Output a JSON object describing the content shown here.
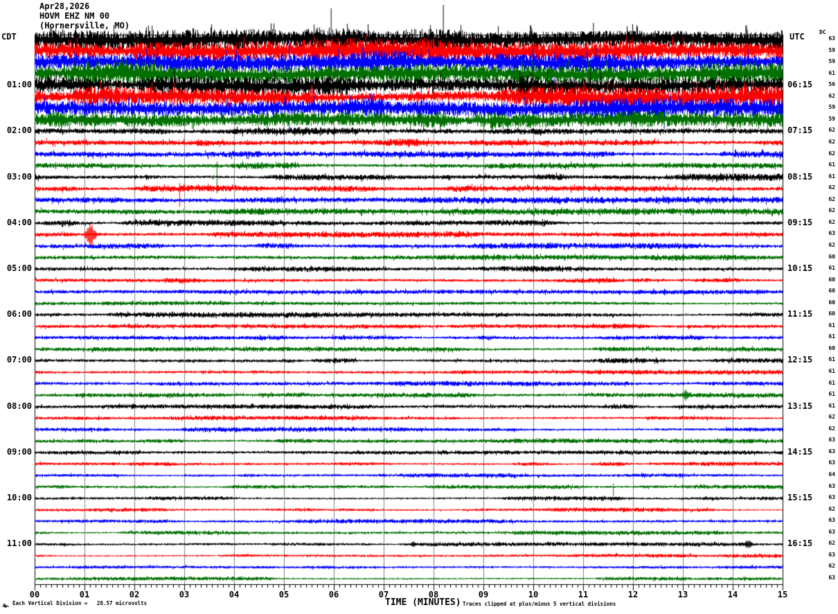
{
  "header": {
    "date": "Apr28,2026",
    "station": "HOVM EHZ NM 00",
    "location": "(Hornersville, MO)"
  },
  "axes": {
    "left_timezone_label": "CDT",
    "right_timezone_label": "UTC",
    "dc_header": "DC",
    "x_title": "TIME (MINUTES)",
    "x_ticks": [
      "00",
      "01",
      "02",
      "03",
      "04",
      "05",
      "06",
      "07",
      "08",
      "09",
      "10",
      "11",
      "12",
      "13",
      "14",
      "15"
    ],
    "footer_left": "Each Vertical Division =   28.57 microvolts",
    "footer_right": "Traces clipped at plus/minus 5 vertical divisions"
  },
  "chart_data": {
    "type": "line",
    "subtype": "helicorder-seismogram",
    "minutes_per_line": 15,
    "x_range": [
      0,
      15
    ],
    "xlabel": "TIME (MINUTES)",
    "grid": true,
    "grid_color": "#808080",
    "trace_color_cycle": [
      "#000000",
      "#ff0000",
      "#0000ff",
      "#007000"
    ],
    "vertical_division_microvolts": 28.57,
    "clip_divisions": 5,
    "rows": [
      {
        "dc": 63,
        "color": "black",
        "amp": 11,
        "activity": "high"
      },
      {
        "dc": 59,
        "color": "red",
        "amp": 11,
        "activity": "high"
      },
      {
        "dc": 59,
        "color": "blue",
        "amp": 11,
        "activity": "high"
      },
      {
        "dc": 61,
        "color": "green",
        "amp": 11,
        "activity": "high"
      },
      {
        "cdt": "01:00",
        "utc": "06:15",
        "dc": 56,
        "color": "black",
        "amp": 11,
        "activity": "high"
      },
      {
        "dc": 62,
        "color": "red",
        "amp": 11,
        "activity": "high"
      },
      {
        "dc": 59,
        "color": "blue",
        "amp": 10,
        "activity": "high"
      },
      {
        "dc": 59,
        "color": "green",
        "amp": 9,
        "activity": "high"
      },
      {
        "cdt": "02:00",
        "utc": "07:15",
        "dc": 62,
        "color": "black",
        "amp": 3.6,
        "activity": "moderate"
      },
      {
        "dc": 62,
        "color": "red",
        "amp": 3.6,
        "activity": "moderate"
      },
      {
        "dc": 62,
        "color": "blue",
        "amp": 3.6,
        "activity": "moderate"
      },
      {
        "dc": 61,
        "color": "green",
        "amp": 3.6,
        "activity": "moderate"
      },
      {
        "cdt": "03:00",
        "utc": "08:15",
        "dc": 61,
        "color": "black",
        "amp": 3.4,
        "activity": "moderate"
      },
      {
        "dc": 62,
        "color": "red",
        "amp": 3.4,
        "activity": "moderate"
      },
      {
        "dc": 62,
        "color": "blue",
        "amp": 3.3,
        "activity": "moderate"
      },
      {
        "dc": 62,
        "color": "green",
        "amp": 3.2,
        "activity": "moderate"
      },
      {
        "cdt": "04:00",
        "utc": "09:15",
        "dc": 62,
        "color": "black",
        "amp": 2.8,
        "activity": "low"
      },
      {
        "dc": 63,
        "color": "red",
        "amp": 2.8,
        "activity": "low"
      },
      {
        "dc": 62,
        "color": "blue",
        "amp": 2.7,
        "activity": "low"
      },
      {
        "dc": 60,
        "color": "green",
        "amp": 2.6,
        "activity": "low"
      },
      {
        "cdt": "05:00",
        "utc": "10:15",
        "dc": 61,
        "color": "black",
        "amp": 2.6,
        "activity": "low"
      },
      {
        "dc": 60,
        "color": "red",
        "amp": 2.5,
        "activity": "low"
      },
      {
        "dc": 60,
        "color": "blue",
        "amp": 2.5,
        "activity": "low"
      },
      {
        "dc": 60,
        "color": "green",
        "amp": 2.4,
        "activity": "low"
      },
      {
        "cdt": "06:00",
        "utc": "11:15",
        "dc": 60,
        "color": "black",
        "amp": 2.4,
        "activity": "low"
      },
      {
        "dc": 61,
        "color": "red",
        "amp": 2.3,
        "activity": "low"
      },
      {
        "dc": 61,
        "color": "blue",
        "amp": 2.3,
        "activity": "low"
      },
      {
        "dc": 60,
        "color": "green",
        "amp": 2.3,
        "activity": "low"
      },
      {
        "cdt": "07:00",
        "utc": "12:15",
        "dc": 61,
        "color": "black",
        "amp": 2.3,
        "activity": "low"
      },
      {
        "dc": 61,
        "color": "red",
        "amp": 2.2,
        "activity": "low"
      },
      {
        "dc": 61,
        "color": "blue",
        "amp": 2.2,
        "activity": "low"
      },
      {
        "dc": 61,
        "color": "green",
        "amp": 2.2,
        "activity": "low"
      },
      {
        "cdt": "08:00",
        "utc": "13:15",
        "dc": 61,
        "color": "black",
        "amp": 2.2,
        "activity": "low"
      },
      {
        "dc": 62,
        "color": "red",
        "amp": 2.1,
        "activity": "low"
      },
      {
        "dc": 62,
        "color": "blue",
        "amp": 2.1,
        "activity": "low"
      },
      {
        "dc": 63,
        "color": "green",
        "amp": 2.1,
        "activity": "low"
      },
      {
        "cdt": "09:00",
        "utc": "14:15",
        "dc": 63,
        "color": "black",
        "amp": 2.0,
        "activity": "low"
      },
      {
        "dc": 63,
        "color": "red",
        "amp": 2.0,
        "activity": "low"
      },
      {
        "dc": 64,
        "color": "blue",
        "amp": 2.0,
        "activity": "low"
      },
      {
        "dc": 63,
        "color": "green",
        "amp": 1.9,
        "activity": "low"
      },
      {
        "cdt": "10:00",
        "utc": "15:15",
        "dc": 63,
        "color": "black",
        "amp": 1.9,
        "activity": "low"
      },
      {
        "dc": 62,
        "color": "red",
        "amp": 1.9,
        "activity": "low"
      },
      {
        "dc": 63,
        "color": "blue",
        "amp": 1.9,
        "activity": "low"
      },
      {
        "dc": 63,
        "color": "green",
        "amp": 1.9,
        "activity": "low"
      },
      {
        "cdt": "11:00",
        "utc": "16:15",
        "dc": 62,
        "color": "black",
        "amp": 1.9,
        "activity": "low"
      },
      {
        "dc": 63,
        "color": "red",
        "amp": 1.8,
        "activity": "low"
      },
      {
        "dc": 62,
        "color": "blue",
        "amp": 1.8,
        "activity": "low"
      },
      {
        "dc": 63,
        "color": "green",
        "amp": 1.8,
        "activity": "low"
      }
    ],
    "spikes": [
      {
        "r": 0,
        "m": 5.94,
        "u": 45,
        "d": 8
      },
      {
        "r": 0,
        "m": 8.19,
        "u": 50,
        "d": 8
      },
      {
        "r": 0,
        "m": 9.95,
        "u": 28,
        "d": 6,
        "w": 3
      },
      {
        "r": 0,
        "m": 11.2,
        "u": 24,
        "d": 6
      },
      {
        "r": 0,
        "m": 14.27,
        "u": 30,
        "d": 6,
        "w": 2
      },
      {
        "r": 0,
        "m": 2.35,
        "u": 20,
        "d": 5
      },
      {
        "r": 1,
        "m": 11.98,
        "u": 18,
        "d": 100
      },
      {
        "r": 1,
        "m": 5.6,
        "u": 22,
        "d": 8
      },
      {
        "r": 2,
        "m": 5.1,
        "u": 33,
        "d": 102
      },
      {
        "r": 2,
        "m": 7.75,
        "u": 20,
        "d": 58
      },
      {
        "r": 2,
        "m": 10.42,
        "u": 15,
        "d": 44
      },
      {
        "r": 2,
        "m": 14.3,
        "u": 18,
        "d": 50
      },
      {
        "r": 5,
        "m": 5.55,
        "u": 18,
        "d": 20,
        "w": 6
      },
      {
        "r": 5,
        "m": 9.7,
        "u": 16,
        "d": 16,
        "w": 5
      },
      {
        "r": 6,
        "m": 12.62,
        "u": 12,
        "d": 30
      },
      {
        "r": 11,
        "m": 3.65,
        "u": 6,
        "d": 40
      },
      {
        "r": 13,
        "m": 2.9,
        "u": 8,
        "d": 26
      },
      {
        "r": 17,
        "m": 1.12,
        "u": 17,
        "d": 20,
        "w": 10
      },
      {
        "r": 31,
        "m": 13.05,
        "u": 9,
        "d": 9,
        "w": 5
      },
      {
        "r": 39,
        "m": 11.6,
        "u": 5,
        "d": 13
      },
      {
        "r": 44,
        "m": 7.6,
        "u": 5,
        "d": 5,
        "w": 6
      },
      {
        "r": 44,
        "m": 14.3,
        "u": 7,
        "d": 7,
        "w": 8
      }
    ]
  }
}
